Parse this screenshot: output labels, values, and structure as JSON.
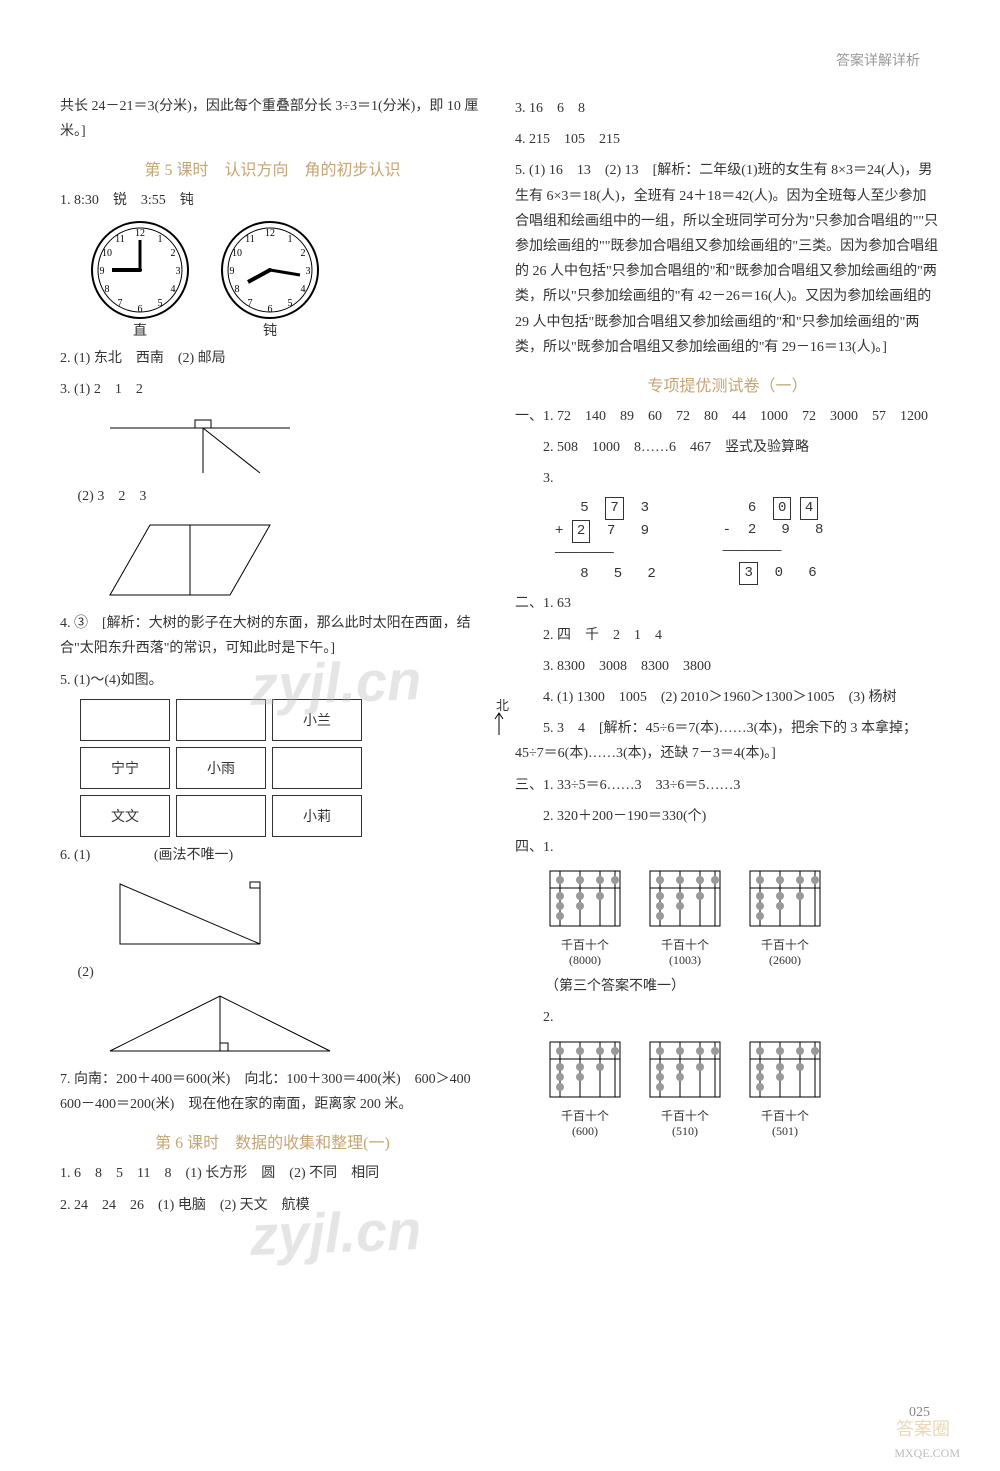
{
  "header": {
    "title": "答案详解详析"
  },
  "watermark": "zyjl.cn",
  "page_number": "025",
  "bottom_badge": "答案圈",
  "bottom_badge2": "MXQE.COM",
  "left": {
    "intro": "共长 24－21＝3(分米)，因此每个重叠部分长 3÷3＝1(分米)，即 10 厘米。]",
    "sec5_title": "第 5 课时　认识方向　角的初步认识",
    "q1": "1. 8:30　锐　3:55　钝",
    "clock_labels": {
      "left": "直",
      "right": "钝"
    },
    "q2": "2. (1) 东北　西南　(2) 邮局",
    "q3a": "3. (1) 2　1　2",
    "q3b": "　 (2) 3　2　3",
    "q4": "4. ③　[解析：大树的影子在大树的东面，那么此时太阳在西面，结合\"太阳东升西落\"的常识，可知此时是下午。]",
    "q5": "5. (1)～(4)如图。",
    "north": "北",
    "grid": {
      "r0c0": "",
      "r0c1": "",
      "r0c2": "小兰",
      "r1c0": "宁宁",
      "r1c1": "小雨",
      "r1c2": "",
      "r2c0": "文文",
      "r2c1": "",
      "r2c2": "小莉"
    },
    "q6": "6. (1)",
    "q6note": "(画法不唯一)",
    "q6b": "　 (2)",
    "q7": "7. 向南：200＋400＝600(米)　向北：100＋300＝400(米)　600＞400　600－400＝200(米)　现在他在家的南面，距离家 200 米。",
    "sec6_title": "第 6 课时　数据的收集和整理(一)",
    "s6q1": "1. 6　8　5　11　8　(1) 长方形　圆　(2) 不同　相同",
    "s6q2": "2. 24　24　26　(1) 电脑　(2) 天文　航模"
  },
  "right": {
    "q3": "3. 16　6　8",
    "q4": "4. 215　105　215",
    "q5": "5. (1) 16　13　(2) 13　[解析：二年级(1)班的女生有 8×3＝24(人)，男生有 6×3＝18(人)，全班有 24＋18＝42(人)。因为全班每人至少参加合唱组和绘画组中的一组，所以全班同学可分为\"只参加合唱组的\"\"只参加绘画组的\"\"既参加合唱组又参加绘画组的\"三类。因为参加合唱组的 26 人中包括\"只参加合唱组的\"和\"既参加合唱组又参加绘画组的\"两类，所以\"只参加绘画组的\"有 42－26＝16(人)。又因为参加绘画组的 29 人中包括\"既参加合唱组又参加绘画组的\"和\"只参加绘画组的\"两类，所以\"既参加合唱组又参加绘画组的\"有 29－16＝13(人)。]",
    "test_title": "专项提优测试卷（一）",
    "p1q1": "一、1. 72　140　89　60　72　80　44　1000　72　3000　57　1200",
    "p1q2": "　　2. 508　1000　8……6　467　竖式及验算略",
    "p1q3label": "　　3.",
    "arith1": {
      "r1": [
        "5",
        "7",
        "3"
      ],
      "op": "+",
      "r2": [
        "2",
        "7",
        "9"
      ],
      "res": [
        "8",
        "5",
        "2"
      ],
      "boxed_r1": [
        1
      ],
      "boxed_r2": [
        0
      ],
      "boxed_res": []
    },
    "arith2": {
      "r1": [
        "6",
        "0",
        "4"
      ],
      "op": "-",
      "r2": [
        "2",
        "9",
        "8"
      ],
      "res": [
        "3",
        "0",
        "6"
      ],
      "boxed_r1": [
        1,
        2
      ],
      "boxed_r2": [],
      "boxed_res": [
        0
      ]
    },
    "p2q1": "二、1. 63",
    "p2q2": "　　2. 四　千　2　1　4",
    "p2q3": "　　3. 8300　3008　8300　3800",
    "p2q4": "　　4. (1) 1300　1005　(2) 2010＞1960＞1300＞1005　(3) 杨树",
    "p2q5": "　　5. 3　4　[解析：45÷6＝7(本)……3(本)，把余下的 3 本拿掉；45÷7＝6(本)……3(本)，还缺 7－3＝4(本)。]",
    "p3q1": "三、1. 33÷5＝6……3　33÷6＝5……3",
    "p3q2": "　　2. 320＋200－190＝330(个)",
    "p4label": "四、1.",
    "abacus1": [
      {
        "label": "千百十个",
        "value": "(8000)"
      },
      {
        "label": "千百十个",
        "value": "(1003)"
      },
      {
        "label": "千百十个",
        "value": "(2600)"
      }
    ],
    "abacus1_note": "（第三个答案不唯一）",
    "p4q2": "　　2.",
    "abacus2": [
      {
        "label": "千百十个",
        "value": "(600)"
      },
      {
        "label": "千百十个",
        "value": "(510)"
      },
      {
        "label": "千百十个",
        "value": "(501)"
      }
    ]
  },
  "colors": {
    "text": "#333333",
    "accent": "#c4a574",
    "muted": "#999999",
    "border": "#333333",
    "watermark": "rgba(180,180,180,0.35)"
  }
}
